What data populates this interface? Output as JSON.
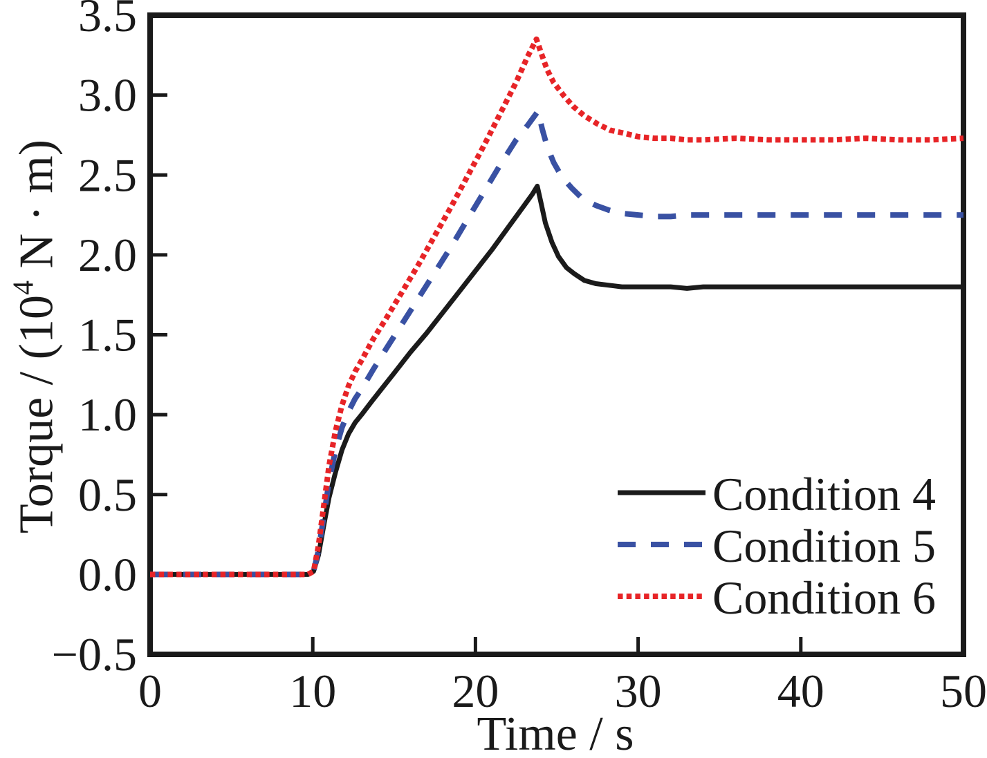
{
  "figure": {
    "background": "#ffffff",
    "text_color": "#1a1a1a",
    "ylabel_parts": {
      "prefix": "Torque / (10",
      "superscript": "4",
      "suffix": " N · m)"
    }
  },
  "chart_data": {
    "type": "line",
    "title": "",
    "xlabel": "Time / s",
    "ylabel": "Torque / (10^4 N · m)",
    "xlim": [
      0,
      50
    ],
    "ylim": [
      -0.5,
      3.5
    ],
    "x_ticks": [
      0,
      10,
      20,
      30,
      40,
      50
    ],
    "y_ticks": [
      -0.5,
      0,
      0.5,
      1,
      1.5,
      2,
      2.5,
      3,
      3.5
    ],
    "x_tick_labels": [
      "0",
      "10",
      "20",
      "30",
      "40",
      "50"
    ],
    "y_tick_labels": [
      "−0.5",
      "0.0",
      "0.5",
      "1.0",
      "1.5",
      "2.0",
      "2.5",
      "3.0",
      "3.5"
    ],
    "grid": false,
    "legend_position": "lower right",
    "series": [
      {
        "name": "Condition 4",
        "color": "#1b1b1b",
        "style": "solid",
        "dash": null,
        "width": 7,
        "points": [
          [
            0,
            0
          ],
          [
            3,
            0
          ],
          [
            6,
            0
          ],
          [
            8.5,
            0
          ],
          [
            9.7,
            0
          ],
          [
            10.05,
            0.02
          ],
          [
            10.35,
            0.12
          ],
          [
            10.7,
            0.32
          ],
          [
            11,
            0.48
          ],
          [
            11.4,
            0.64
          ],
          [
            11.8,
            0.78
          ],
          [
            12.2,
            0.88
          ],
          [
            12.6,
            0.95
          ],
          [
            13,
            1.0
          ],
          [
            13.6,
            1.08
          ],
          [
            14.3,
            1.17
          ],
          [
            15,
            1.26
          ],
          [
            16,
            1.39
          ],
          [
            17,
            1.51
          ],
          [
            18,
            1.64
          ],
          [
            19,
            1.77
          ],
          [
            20,
            1.9
          ],
          [
            21,
            2.03
          ],
          [
            22,
            2.17
          ],
          [
            23,
            2.31
          ],
          [
            23.5,
            2.38
          ],
          [
            23.8,
            2.43
          ],
          [
            24,
            2.34
          ],
          [
            24.3,
            2.2
          ],
          [
            24.7,
            2.08
          ],
          [
            25.1,
            1.99
          ],
          [
            25.6,
            1.92
          ],
          [
            26.1,
            1.88
          ],
          [
            26.7,
            1.84
          ],
          [
            27.4,
            1.82
          ],
          [
            28.2,
            1.81
          ],
          [
            29,
            1.8
          ],
          [
            30,
            1.8
          ],
          [
            31,
            1.8
          ],
          [
            32,
            1.8
          ],
          [
            33,
            1.79
          ],
          [
            34,
            1.8
          ],
          [
            35,
            1.8
          ],
          [
            36,
            1.8
          ],
          [
            37,
            1.8
          ],
          [
            38,
            1.8
          ],
          [
            39,
            1.8
          ],
          [
            40,
            1.8
          ],
          [
            42,
            1.8
          ],
          [
            44,
            1.8
          ],
          [
            46,
            1.8
          ],
          [
            48,
            1.8
          ],
          [
            50,
            1.8
          ]
        ]
      },
      {
        "name": "Condition 5",
        "color": "#3951a3",
        "style": "dashed",
        "dash": "26 22",
        "width": 8,
        "points": [
          [
            0,
            0
          ],
          [
            3,
            0
          ],
          [
            6,
            0
          ],
          [
            8.5,
            0
          ],
          [
            9.7,
            0
          ],
          [
            10.05,
            0.02
          ],
          [
            10.35,
            0.15
          ],
          [
            10.7,
            0.38
          ],
          [
            11,
            0.58
          ],
          [
            11.4,
            0.78
          ],
          [
            11.8,
            0.92
          ],
          [
            12.2,
            1.02
          ],
          [
            12.6,
            1.1
          ],
          [
            13,
            1.16
          ],
          [
            13.7,
            1.28
          ],
          [
            14.5,
            1.41
          ],
          [
            15.5,
            1.57
          ],
          [
            16.5,
            1.73
          ],
          [
            17.5,
            1.89
          ],
          [
            18.5,
            2.05
          ],
          [
            19.5,
            2.22
          ],
          [
            20.5,
            2.39
          ],
          [
            21.5,
            2.56
          ],
          [
            22.5,
            2.72
          ],
          [
            23.2,
            2.81
          ],
          [
            23.85,
            2.9
          ],
          [
            24.1,
            2.79
          ],
          [
            24.4,
            2.68
          ],
          [
            24.8,
            2.58
          ],
          [
            25.3,
            2.49
          ],
          [
            25.9,
            2.42
          ],
          [
            26.6,
            2.35
          ],
          [
            27.4,
            2.31
          ],
          [
            28.2,
            2.28
          ],
          [
            29,
            2.26
          ],
          [
            30,
            2.25
          ],
          [
            31,
            2.24
          ],
          [
            32,
            2.24
          ],
          [
            33,
            2.25
          ],
          [
            34,
            2.25
          ],
          [
            36,
            2.25
          ],
          [
            38,
            2.25
          ],
          [
            40,
            2.25
          ],
          [
            42,
            2.25
          ],
          [
            44,
            2.25
          ],
          [
            46,
            2.25
          ],
          [
            48,
            2.25
          ],
          [
            50,
            2.25
          ]
        ]
      },
      {
        "name": "Condition 6",
        "color": "#e72427",
        "style": "dotted",
        "dash": "7.5 5.2",
        "width": 8,
        "points": [
          [
            0,
            0
          ],
          [
            3,
            0
          ],
          [
            6,
            0
          ],
          [
            8.5,
            0
          ],
          [
            9.7,
            0
          ],
          [
            10.05,
            0.02
          ],
          [
            10.35,
            0.18
          ],
          [
            10.7,
            0.45
          ],
          [
            11,
            0.68
          ],
          [
            11.4,
            0.9
          ],
          [
            11.8,
            1.06
          ],
          [
            12.2,
            1.18
          ],
          [
            12.6,
            1.27
          ],
          [
            13,
            1.34
          ],
          [
            13.7,
            1.47
          ],
          [
            14.5,
            1.6
          ],
          [
            15.5,
            1.77
          ],
          [
            16.5,
            1.94
          ],
          [
            17.5,
            2.12
          ],
          [
            18.5,
            2.3
          ],
          [
            19.5,
            2.49
          ],
          [
            20.5,
            2.68
          ],
          [
            21.5,
            2.88
          ],
          [
            22.5,
            3.08
          ],
          [
            23.2,
            3.24
          ],
          [
            23.75,
            3.35
          ],
          [
            24.05,
            3.26
          ],
          [
            24.4,
            3.16
          ],
          [
            24.8,
            3.08
          ],
          [
            25.4,
            3.0
          ],
          [
            26,
            2.93
          ],
          [
            26.7,
            2.87
          ],
          [
            27.5,
            2.82
          ],
          [
            28.3,
            2.78
          ],
          [
            29.2,
            2.76
          ],
          [
            30,
            2.74
          ],
          [
            31,
            2.73
          ],
          [
            32,
            2.73
          ],
          [
            33,
            2.72
          ],
          [
            34,
            2.72
          ],
          [
            36,
            2.73
          ],
          [
            38,
            2.72
          ],
          [
            40,
            2.72
          ],
          [
            42,
            2.72
          ],
          [
            44,
            2.73
          ],
          [
            46,
            2.72
          ],
          [
            48,
            2.72
          ],
          [
            50,
            2.73
          ]
        ]
      }
    ]
  }
}
